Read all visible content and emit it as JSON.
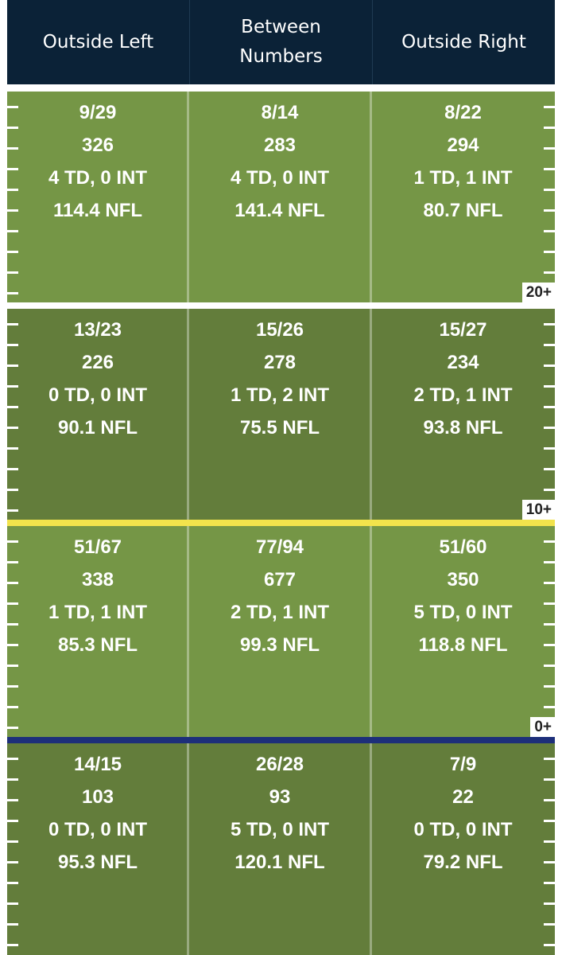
{
  "header": {
    "col1": "Outside Left",
    "col2_line1": "Between",
    "col2_line2": "Numbers",
    "col3": "Outside Right"
  },
  "zones": [
    {
      "badge": "20+",
      "color": "#759646",
      "cells": [
        {
          "comp": "9/29",
          "yds": "326",
          "tdint": "4 TD, 0 INT",
          "rating": "114.4 NFL"
        },
        {
          "comp": "8/14",
          "yds": "283",
          "tdint": "4 TD, 0 INT",
          "rating": "141.4 NFL"
        },
        {
          "comp": "8/22",
          "yds": "294",
          "tdint": "1 TD, 1 INT",
          "rating": "80.7 NFL"
        }
      ]
    },
    {
      "badge": "10+",
      "color": "#637d3b",
      "cells": [
        {
          "comp": "13/23",
          "yds": "226",
          "tdint": "0 TD, 0 INT",
          "rating": "90.1 NFL"
        },
        {
          "comp": "15/26",
          "yds": "278",
          "tdint": "1 TD, 2 INT",
          "rating": "75.5 NFL"
        },
        {
          "comp": "15/27",
          "yds": "234",
          "tdint": "2 TD, 1 INT",
          "rating": "93.8 NFL"
        }
      ]
    },
    {
      "badge": "0+",
      "color": "#759646",
      "cells": [
        {
          "comp": "51/67",
          "yds": "338",
          "tdint": "1 TD, 1 INT",
          "rating": "85.3 NFL"
        },
        {
          "comp": "77/94",
          "yds": "677",
          "tdint": "2 TD, 1 INT",
          "rating": "99.3 NFL"
        },
        {
          "comp": "51/60",
          "yds": "350",
          "tdint": "5 TD, 0 INT",
          "rating": "118.8 NFL"
        }
      ]
    },
    {
      "badge": "",
      "color": "#637d3b",
      "cells": [
        {
          "comp": "14/15",
          "yds": "103",
          "tdint": "0 TD, 0 INT",
          "rating": "95.3 NFL"
        },
        {
          "comp": "26/28",
          "yds": "93",
          "tdint": "5 TD, 0 INT",
          "rating": "120.1 NFL"
        },
        {
          "comp": "7/9",
          "yds": "22",
          "tdint": "0 TD, 0 INT",
          "rating": "79.2 NFL"
        }
      ]
    }
  ],
  "colors": {
    "header_bg": "#0b2237",
    "divider_white": "#ffffff",
    "divider_yellow": "#f2e34c",
    "divider_blue": "#1d2f7a"
  }
}
